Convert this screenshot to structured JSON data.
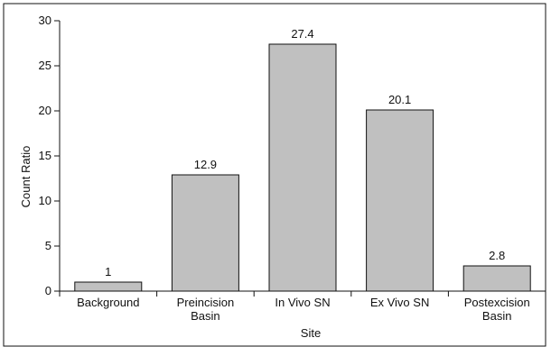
{
  "colors": {
    "bar_fill": "#c0c0c0",
    "bar_stroke": "#111111",
    "axis": "#111111",
    "frame": "#111111"
  },
  "chart_data": {
    "type": "bar",
    "title": "",
    "xlabel": "Site",
    "ylabel": "Count Ratio",
    "categories": [
      [
        "Background"
      ],
      [
        "Preincision",
        "Basin"
      ],
      [
        "In Vivo SN"
      ],
      [
        "Ex Vivo SN"
      ],
      [
        "Postexcision",
        "Basin"
      ]
    ],
    "values": [
      1,
      12.9,
      27.4,
      20.1,
      2.8
    ],
    "data_labels": [
      "1",
      "12.9",
      "27.4",
      "20.1",
      "2.8"
    ],
    "ylim": [
      0,
      30
    ],
    "yticks": [
      0,
      5,
      10,
      15,
      20,
      25,
      30
    ],
    "grid": false,
    "legend": "none"
  }
}
